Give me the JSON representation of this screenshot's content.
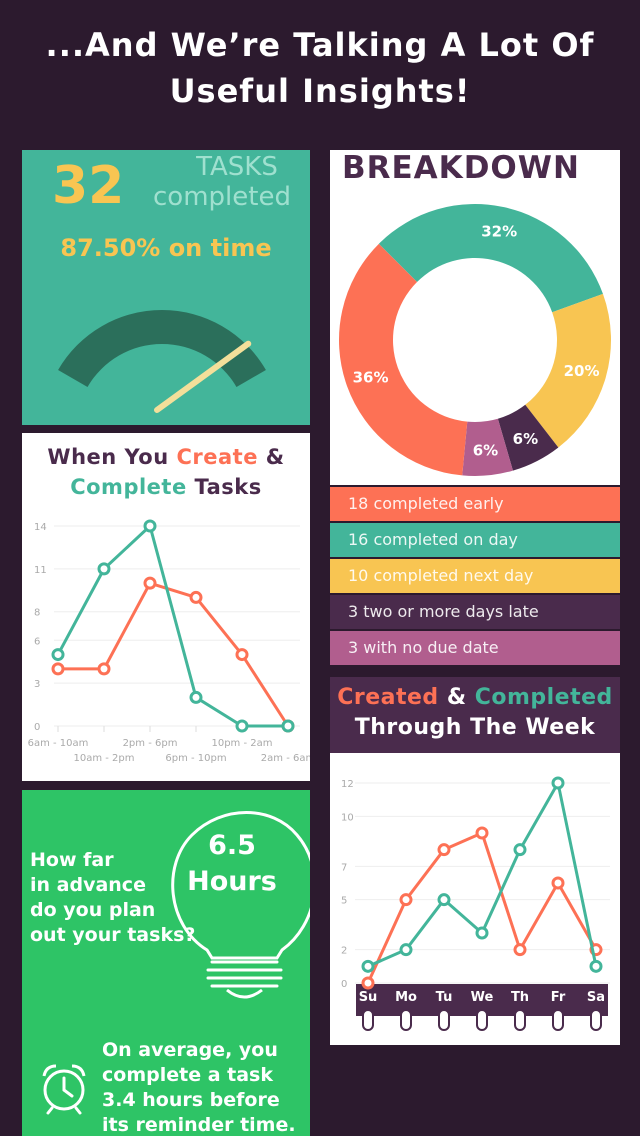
{
  "header": {
    "line1": "...And We’re Talking A Lot Of",
    "line2": "Useful Insights!"
  },
  "tasks": {
    "count": "32",
    "label1": "TASKS",
    "label2": "completed",
    "on_time": "87.50% on time",
    "on_time_fraction": 0.875
  },
  "create": {
    "title_part1": "When You ",
    "title_highlight1": "Create",
    "title_amp": " &",
    "title_highlight2": "Complete",
    "title_part2": " Tasks",
    "y_ticks": [
      "0",
      "3",
      "6",
      "8",
      "11",
      "14"
    ],
    "x_labels_top": [
      "6am - 10am",
      "2pm - 6pm",
      "10pm - 2am"
    ],
    "x_labels_bottom": [
      "10am - 2pm",
      "6pm - 10pm",
      "2am - 6am"
    ]
  },
  "breakdown": {
    "title": "BREAKDOWN",
    "slices": [
      {
        "label": "32%",
        "value": 32,
        "color": "#43b59a"
      },
      {
        "label": "20%",
        "value": 20,
        "color": "#f8c552"
      },
      {
        "label": "6%",
        "value": 6,
        "color": "#4a2b4c"
      },
      {
        "label": "6%",
        "value": 6,
        "color": "#b15e8e"
      },
      {
        "label": "36%",
        "value": 36,
        "color": "#fd7155"
      }
    ],
    "legend": [
      {
        "text": "18 completed early",
        "color": "#fd7155"
      },
      {
        "text": "16 completed on day",
        "color": "#43b59a"
      },
      {
        "text": "10 completed next day",
        "color": "#f8c552"
      },
      {
        "text": "3 two or more days late",
        "color": "#4a2b4c"
      },
      {
        "text": "3 with no due date",
        "color": "#b15e8e"
      }
    ]
  },
  "week": {
    "title_created": "Created",
    "title_amp": " & ",
    "title_completed": "Completed",
    "title_line2": "Through The Week",
    "y_ticks": [
      "0",
      "2",
      "5",
      "7",
      "10",
      "12"
    ],
    "days": [
      "Su",
      "Mo",
      "Tu",
      "We",
      "Th",
      "Fr",
      "Sa"
    ]
  },
  "plan": {
    "question": [
      "How far",
      "in advance",
      "do you plan",
      "out your tasks?"
    ],
    "hours_value": "6.5",
    "hours_unit": "Hours",
    "answer": [
      "On average, you",
      "complete a task",
      "3.4 hours before",
      "its reminder time."
    ]
  },
  "colors": {
    "teal": "#43b59a",
    "coral": "#fd7155",
    "yellow": "#f8c552",
    "purple": "#4a2b4c",
    "pink": "#b15e8e",
    "green": "#2ec466",
    "bg": "#2c1a2e"
  },
  "chart_data": [
    {
      "type": "line",
      "x": [
        "6am - 10am",
        "10am - 2pm",
        "2pm - 6pm",
        "6pm - 10pm",
        "10pm - 2am",
        "2am - 6am"
      ],
      "series": [
        {
          "name": "Create",
          "color": "#fd7155",
          "values": [
            4,
            4,
            10,
            9,
            5,
            0
          ]
        },
        {
          "name": "Complete",
          "color": "#43b59a",
          "values": [
            5,
            11,
            14,
            2,
            0,
            0
          ]
        }
      ],
      "ylim": [
        0,
        14
      ]
    },
    {
      "type": "pie",
      "categories": [
        "18 completed early",
        "16 completed on day",
        "10 completed next day",
        "3 two or more days late",
        "3 with no due date"
      ],
      "values": [
        36,
        32,
        20,
        6,
        6
      ]
    },
    {
      "type": "line",
      "x": [
        "Su",
        "Mo",
        "Tu",
        "We",
        "Th",
        "Fr",
        "Sa"
      ],
      "series": [
        {
          "name": "Created",
          "color": "#fd7155",
          "values": [
            0,
            5,
            8,
            9,
            2,
            6,
            2
          ]
        },
        {
          "name": "Completed",
          "color": "#43b59a",
          "values": [
            1,
            2,
            5,
            3,
            8,
            12,
            1
          ]
        }
      ],
      "ylim": [
        0,
        12
      ]
    }
  ]
}
